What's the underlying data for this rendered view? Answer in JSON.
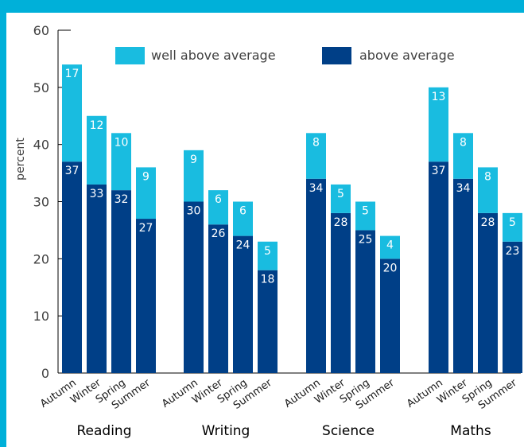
{
  "chart_data": {
    "type": "bar",
    "stacked": true,
    "ylabel": "percent",
    "ylim": [
      0,
      60
    ],
    "yticks": [
      0,
      10,
      20,
      30,
      40,
      50,
      60
    ],
    "groups": [
      "Reading",
      "Writing",
      "Science",
      "Maths"
    ],
    "categories": [
      "Autumn",
      "Winter",
      "Spring",
      "Summer"
    ],
    "series": [
      {
        "name": "above average",
        "color": "#003f87",
        "values": [
          [
            37,
            33,
            32,
            27
          ],
          [
            30,
            26,
            24,
            18
          ],
          [
            34,
            28,
            25,
            20
          ],
          [
            37,
            34,
            28,
            23
          ]
        ]
      },
      {
        "name": "well above average",
        "color": "#19bce0",
        "values": [
          [
            17,
            12,
            10,
            9
          ],
          [
            9,
            6,
            6,
            5
          ],
          [
            8,
            5,
            5,
            4
          ],
          [
            13,
            8,
            8,
            5
          ]
        ]
      }
    ],
    "legend_position": "top"
  }
}
